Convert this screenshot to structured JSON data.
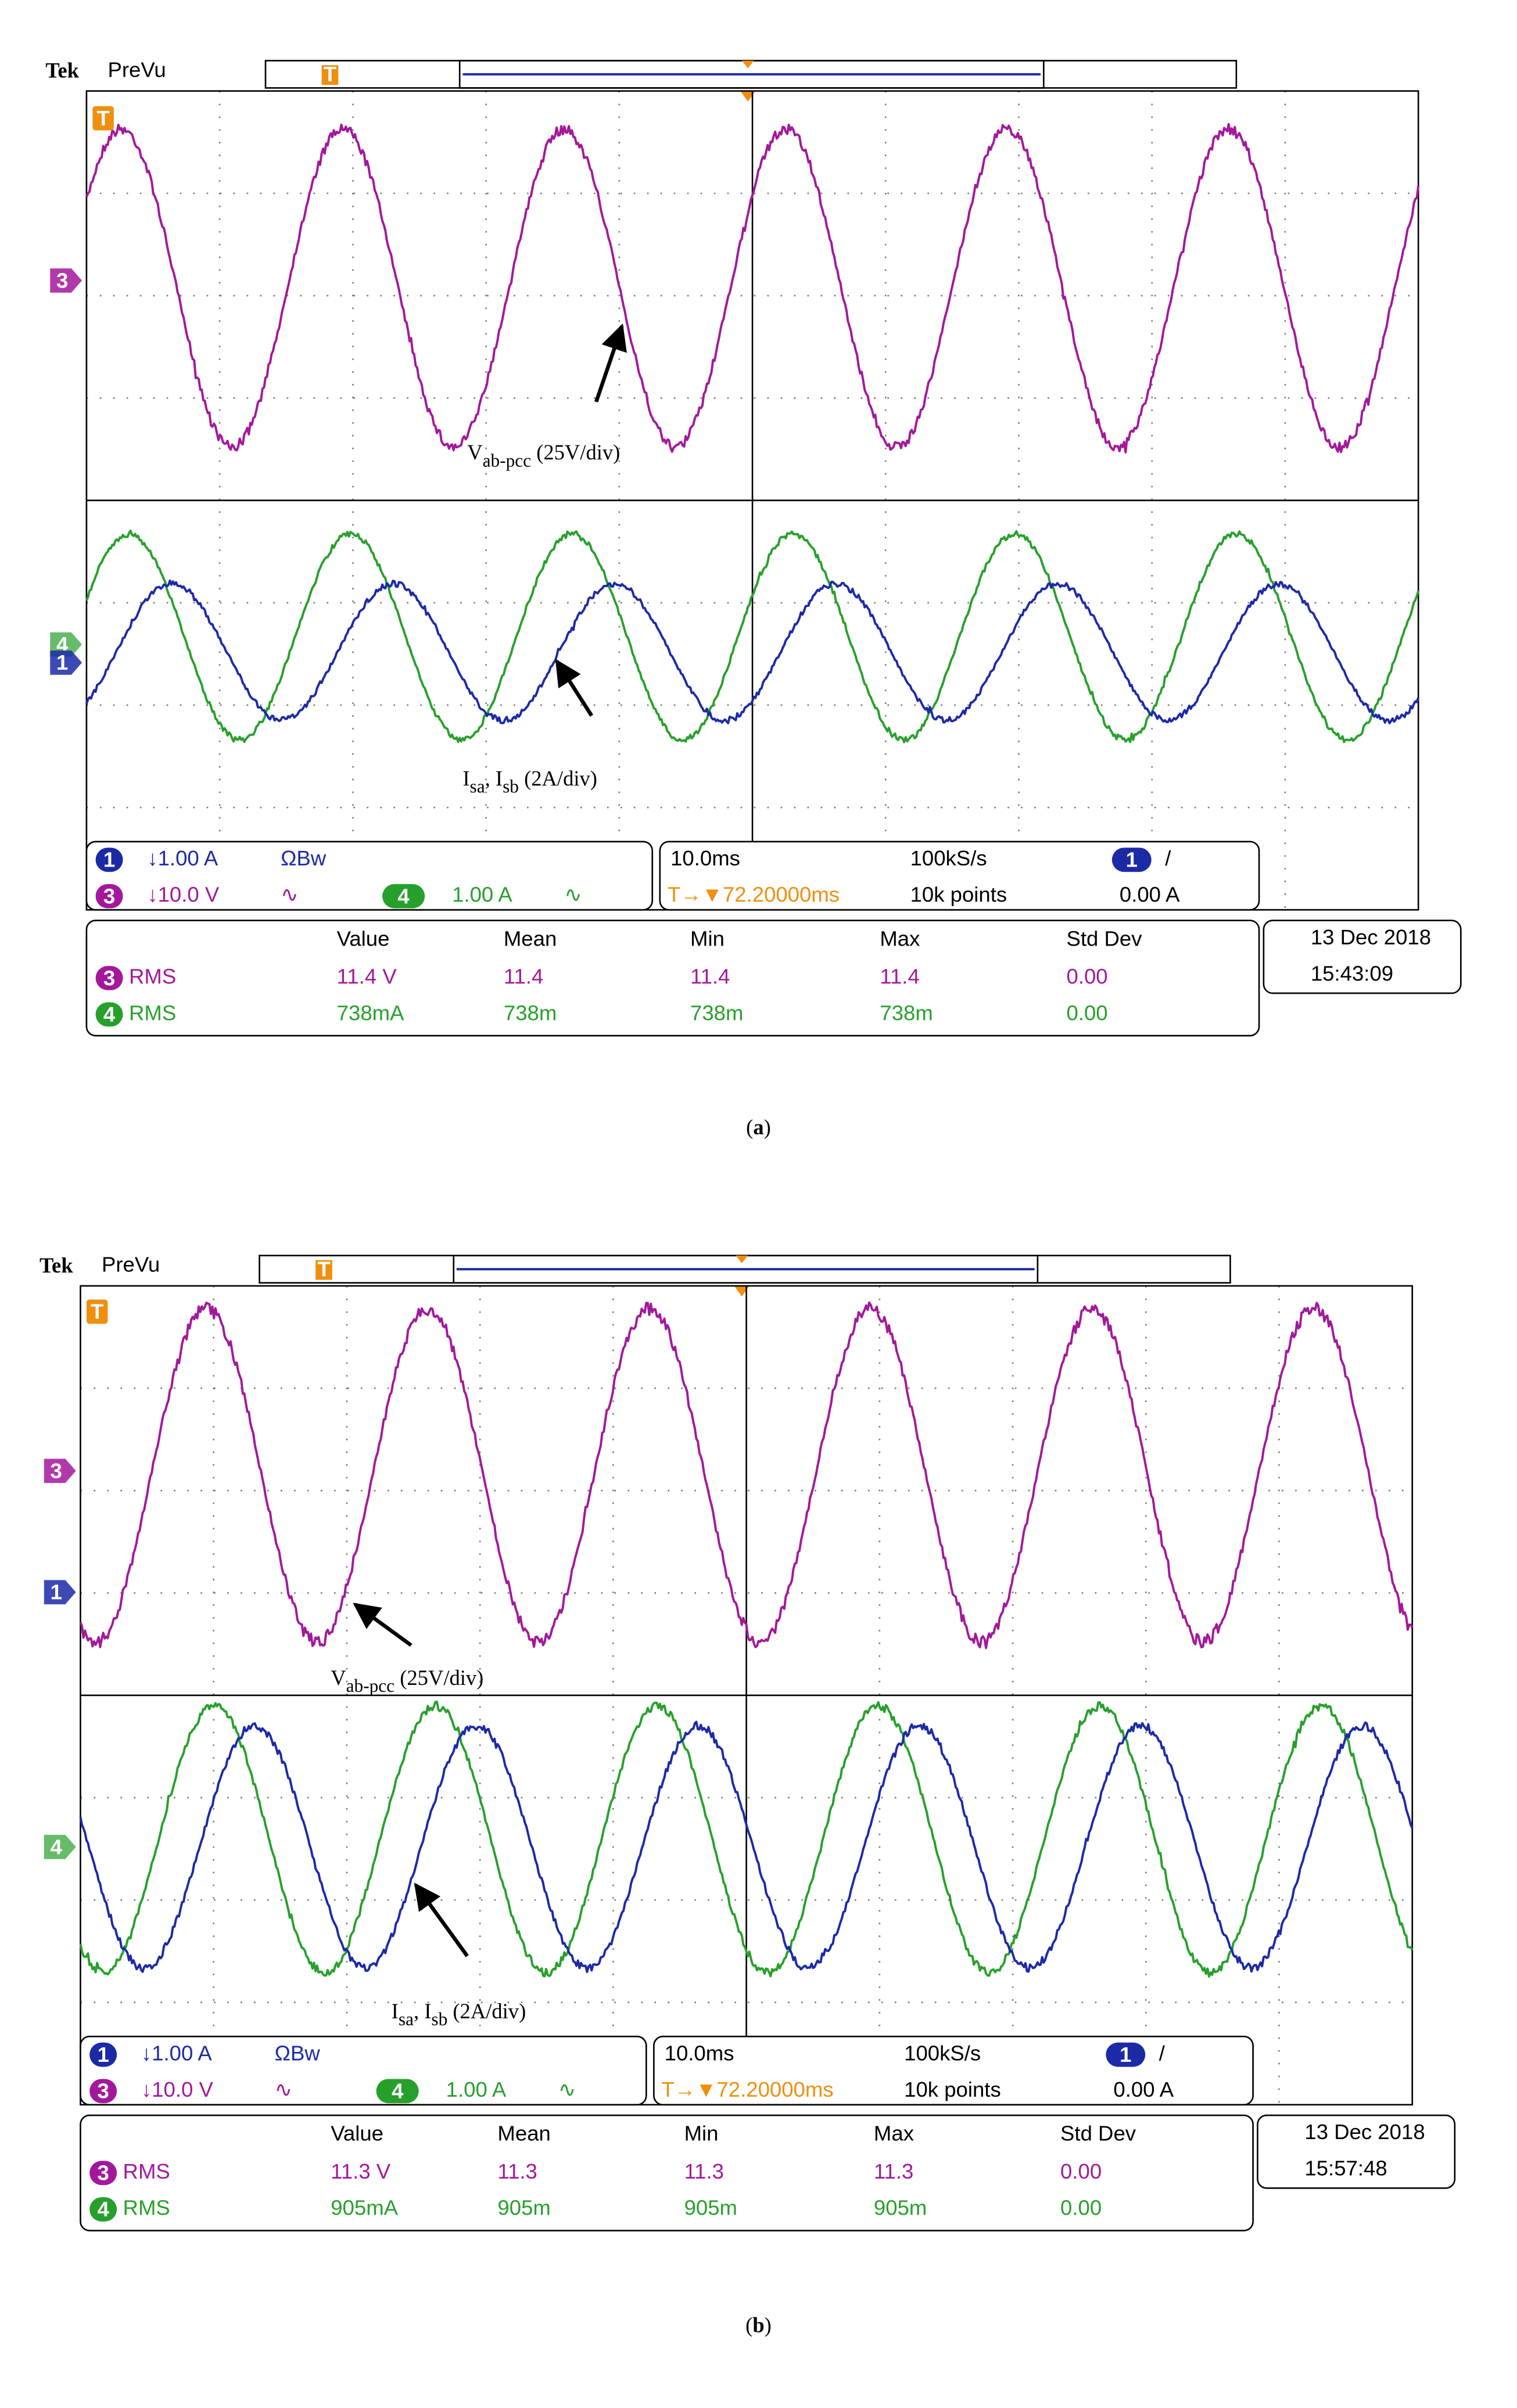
{
  "panels": [
    {
      "brand": "Tek",
      "mode": "PreVu",
      "trigger_marker": "T",
      "channel_markers": [
        "T",
        "3",
        "4",
        "1"
      ],
      "voltage_label": {
        "symbol": "V",
        "subscript": "ab-pcc",
        "scale": " (25V/div)"
      },
      "current_label": {
        "symbol": "I",
        "subscript": "sa",
        "separator": ", I",
        "subscript2": "sb",
        "scale": " (2A/div)"
      },
      "channels": {
        "ch1": {
          "number": "1",
          "scale": "↓1.00 A",
          "coupling": "ΩBw"
        },
        "ch3": {
          "number": "3",
          "scale": "↓10.0 V",
          "coupling": "∿"
        },
        "ch4": {
          "number": "4",
          "scale": "1.00 A",
          "coupling": "∿"
        }
      },
      "acquisition": {
        "timebase": "10.0ms",
        "sample_rate": "100kS/s",
        "trigger_source": "1",
        "trigger_slope": "/",
        "trigger_position": "T→▼72.20000ms",
        "record_length": "10k points",
        "trigger_level": "0.00 A"
      },
      "measurements": {
        "columns": [
          "Value",
          "Mean",
          "Min",
          "Max",
          "Std Dev"
        ],
        "rows": [
          {
            "source": "3",
            "type": "RMS",
            "cells": [
              "11.4 V",
              "11.4",
              "11.4",
              "11.4",
              "0.00"
            ]
          },
          {
            "source": "4",
            "type": "RMS",
            "cells": [
              "738mA",
              "738m",
              "738m",
              "738m",
              "0.00"
            ]
          }
        ]
      },
      "date": "13 Dec  2018",
      "time": "15:43:09",
      "caption": [
        "(",
        "a",
        ")"
      ]
    },
    {
      "brand": "Tek",
      "mode": "PreVu",
      "trigger_marker": "T",
      "channel_markers": [
        "T",
        "3",
        "1",
        "4"
      ],
      "voltage_label": {
        "symbol": "V",
        "subscript": "ab-pcc",
        "scale": " (25V/div)"
      },
      "current_label": {
        "symbol": "I",
        "subscript": "sa",
        "separator": ", I",
        "subscript2": "sb",
        "scale": " (2A/div)"
      },
      "channels": {
        "ch1": {
          "number": "1",
          "scale": "↓1.00 A",
          "coupling": "ΩBw"
        },
        "ch3": {
          "number": "3",
          "scale": "↓10.0 V",
          "coupling": "∿"
        },
        "ch4": {
          "number": "4",
          "scale": "1.00 A",
          "coupling": "∿"
        }
      },
      "acquisition": {
        "timebase": "10.0ms",
        "sample_rate": "100kS/s",
        "trigger_source": "1",
        "trigger_slope": "/",
        "trigger_position": "T→▼72.20000ms",
        "record_length": "10k points",
        "trigger_level": "0.00 A"
      },
      "measurements": {
        "columns": [
          "Value",
          "Mean",
          "Min",
          "Max",
          "Std Dev"
        ],
        "rows": [
          {
            "source": "3",
            "type": "RMS",
            "cells": [
              "11.3 V",
              "11.3",
              "11.3",
              "11.3",
              "0.00"
            ]
          },
          {
            "source": "4",
            "type": "RMS",
            "cells": [
              "905mA",
              "905m",
              "905m",
              "905m",
              "0.00"
            ]
          }
        ]
      },
      "date": "13 Dec  2018",
      "time": "15:57:48",
      "caption": [
        "(",
        "b",
        ")"
      ]
    }
  ]
}
